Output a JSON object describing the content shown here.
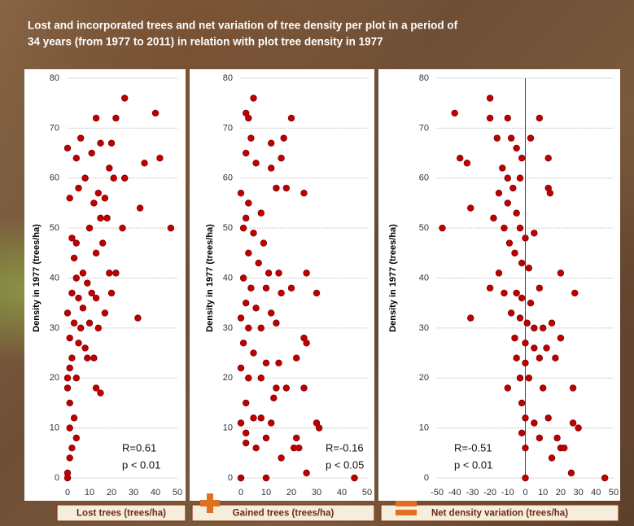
{
  "title_lines": [
    "Lost and incorporated trees and net variation of tree density per plot in a period of",
    "34 years (from 1977 to 2011) in relation with plot tree density in 1977"
  ],
  "chart_data": [
    {
      "type": "scatter",
      "x_label": "Lost trees (trees/ha)",
      "y_label": "Density in 1977  (trees/ha)",
      "annotations": [
        "R=0.61",
        "p < 0.01"
      ],
      "xlim": [
        0,
        50
      ],
      "xticks": [
        0,
        10,
        20,
        30,
        40,
        50
      ],
      "ylim": [
        0,
        80
      ],
      "yticks": [
        0,
        10,
        20,
        30,
        40,
        50,
        60,
        70,
        80
      ],
      "grid": true,
      "zero_line": false,
      "color": "#c00000",
      "x": [
        0,
        0,
        0,
        47,
        40,
        42,
        35,
        33,
        32,
        26,
        22,
        13,
        6,
        4,
        15,
        20,
        11,
        19,
        21,
        26,
        8,
        14,
        12,
        17,
        5,
        1,
        2,
        4,
        10,
        15,
        18,
        25,
        16,
        13,
        19,
        22,
        3,
        7,
        9,
        2,
        5,
        11,
        13,
        17,
        20,
        0,
        3,
        6,
        10,
        14,
        1,
        5,
        8,
        2,
        9,
        12,
        1,
        4,
        0,
        13,
        15,
        1,
        3,
        1,
        4,
        2,
        1,
        0,
        7,
        4
      ],
      "y": [
        0,
        1,
        66,
        50,
        73,
        64,
        63,
        54,
        32,
        76,
        72,
        72,
        68,
        64,
        67,
        67,
        65,
        62,
        60,
        60,
        60,
        57,
        55,
        56,
        58,
        56,
        48,
        47,
        50,
        52,
        52,
        50,
        47,
        45,
        41,
        41,
        44,
        41,
        39,
        37,
        36,
        37,
        36,
        33,
        37,
        33,
        31,
        30,
        31,
        30,
        28,
        27,
        26,
        24,
        24,
        24,
        22,
        20,
        18,
        18,
        17,
        15,
        12,
        10,
        8,
        6,
        4,
        20,
        34,
        40
      ]
    },
    {
      "type": "scatter",
      "x_label": "Gained trees (trees/ha)",
      "y_label": "Density in 1977  (trees/ha)",
      "annotations": [
        "R=-0.16",
        "p < 0.05"
      ],
      "xlim": [
        0,
        50
      ],
      "xticks": [
        0,
        10,
        20,
        30,
        40,
        50
      ],
      "ylim": [
        0,
        80
      ],
      "yticks": [
        0,
        10,
        20,
        30,
        40,
        50,
        60,
        70,
        80
      ],
      "grid": true,
      "zero_line": false,
      "color": "#c00000",
      "x": [
        45,
        26,
        0,
        10,
        5,
        20,
        2,
        3,
        17,
        4,
        12,
        16,
        2,
        6,
        12,
        18,
        14,
        25,
        0,
        3,
        8,
        2,
        1,
        5,
        9,
        3,
        7,
        15,
        26,
        11,
        1,
        4,
        10,
        16,
        30,
        20,
        2,
        6,
        12,
        0,
        3,
        8,
        14,
        25,
        26,
        1,
        5,
        10,
        15,
        22,
        0,
        3,
        8,
        14,
        18,
        25,
        13,
        2,
        0,
        5,
        8,
        12,
        30,
        31,
        2,
        10,
        22,
        21,
        23,
        2,
        6,
        16
      ],
      "y": [
        0,
        1,
        0,
        0,
        76,
        72,
        73,
        72,
        68,
        68,
        67,
        64,
        65,
        63,
        62,
        58,
        58,
        57,
        57,
        55,
        53,
        52,
        50,
        49,
        47,
        45,
        43,
        41,
        41,
        41,
        40,
        38,
        38,
        37,
        37,
        38,
        35,
        34,
        33,
        32,
        30,
        30,
        31,
        28,
        27,
        27,
        25,
        23,
        23,
        24,
        22,
        20,
        20,
        18,
        18,
        18,
        16,
        15,
        11,
        12,
        12,
        11,
        11,
        10,
        9,
        8,
        8,
        6,
        6,
        7,
        6,
        4
      ]
    },
    {
      "type": "scatter",
      "x_label": "Net density variation (trees/ha)",
      "y_label": "Density in 1977  (trees/ha)",
      "annotations": [
        "R=-0.51",
        "p < 0.01"
      ],
      "xlim": [
        -50,
        50
      ],
      "xticks": [
        -50,
        -40,
        -30,
        -20,
        -10,
        0,
        10,
        20,
        30,
        40,
        50
      ],
      "ylim": [
        0,
        80
      ],
      "yticks": [
        0,
        10,
        20,
        30,
        40,
        50,
        60,
        70,
        80
      ],
      "grid": true,
      "zero_line": true,
      "color": "#c00000",
      "x": [
        -47,
        -40,
        -37,
        -33,
        -31,
        -31,
        -20,
        -20,
        -16,
        -10,
        -8,
        -5,
        -2,
        3,
        8,
        13,
        -13,
        -10,
        -7,
        -3,
        13,
        14,
        -15,
        -10,
        -5,
        -3,
        0,
        5,
        -18,
        -12,
        -9,
        -6,
        -2,
        2,
        -15,
        -20,
        -12,
        -5,
        -2,
        3,
        8,
        20,
        28,
        -8,
        -3,
        1,
        5,
        10,
        15,
        -6,
        0,
        5,
        12,
        20,
        -5,
        0,
        8,
        17,
        -10,
        -3,
        2,
        10,
        27,
        -2,
        0,
        5,
        13,
        27,
        30,
        -2,
        8,
        18,
        20,
        22,
        15,
        0,
        26,
        45,
        0
      ],
      "y": [
        50,
        73,
        64,
        63,
        54,
        32,
        76,
        72,
        68,
        72,
        68,
        66,
        64,
        68,
        72,
        64,
        62,
        60,
        58,
        60,
        58,
        57,
        57,
        55,
        53,
        50,
        48,
        49,
        52,
        50,
        47,
        45,
        43,
        42,
        41,
        38,
        37,
        37,
        36,
        35,
        38,
        41,
        37,
        33,
        32,
        31,
        30,
        30,
        31,
        28,
        27,
        26,
        26,
        28,
        24,
        23,
        24,
        24,
        18,
        20,
        20,
        18,
        18,
        15,
        12,
        11,
        12,
        11,
        10,
        9,
        8,
        8,
        6,
        6,
        4,
        0,
        1,
        0,
        6
      ]
    }
  ]
}
